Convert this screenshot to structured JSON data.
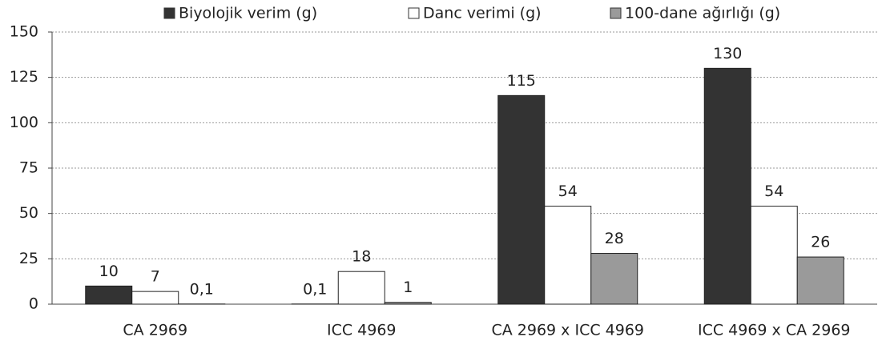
{
  "chart_data": {
    "type": "bar",
    "categories": [
      "CA 2969",
      "ICC 4969",
      "CA 2969 x ICC 4969",
      "ICC 4969 x CA 2969"
    ],
    "series": [
      {
        "name": "Biyolojik verim (g)",
        "color": "#333333",
        "values": [
          10,
          0.1,
          115,
          130
        ],
        "value_labels": [
          "10",
          "0,1",
          "115",
          "130"
        ]
      },
      {
        "name": "Danc verimi (g)",
        "color": "#ffffff",
        "values": [
          7,
          18,
          54,
          54
        ],
        "value_labels": [
          "7",
          "18",
          "54",
          "54"
        ]
      },
      {
        "name": "100-dane ağırlığı (g)",
        "color": "#9a9a9a",
        "values": [
          0.1,
          1,
          28,
          26
        ],
        "value_labels": [
          "0,1",
          "1",
          "28",
          "26"
        ]
      }
    ],
    "ylim": [
      0,
      150
    ],
    "yticks": [
      0,
      25,
      50,
      75,
      100,
      125,
      150
    ],
    "grid": true,
    "legend": "top"
  }
}
